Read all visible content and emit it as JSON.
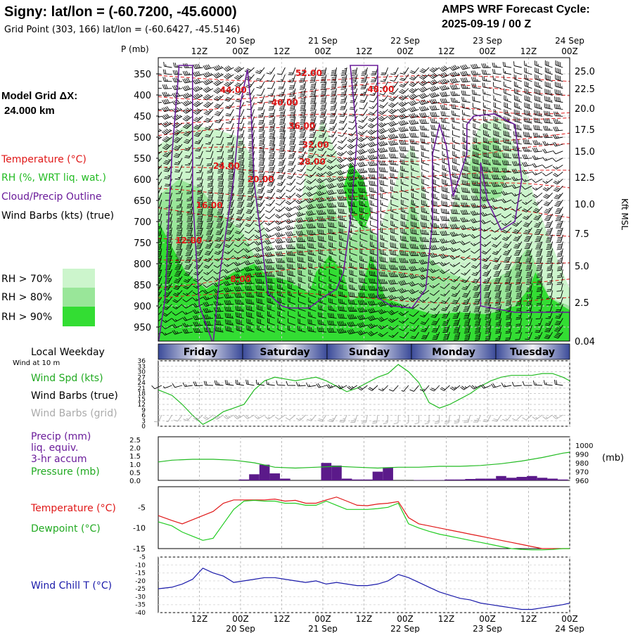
{
  "header": {
    "station_title": "Signy:  lat/lon = (-60.7200, -45.6000)",
    "grid_point": "Grid Point (303, 166) lat/lon = (-60.6427, -45.5146)",
    "forecast_label": "AMPS WRF Forecast Cycle:",
    "cycle": "2025-09-19 / 00  Z",
    "model_grid_label": "Model Grid ΔX:",
    "model_grid_value": "24.000 km"
  },
  "time_axis": {
    "hours": [
      "12Z",
      "00Z",
      "12Z",
      "00Z",
      "12Z",
      "00Z",
      "12Z",
      "00Z",
      "12Z",
      "00Z"
    ],
    "dates": [
      {
        "label": "20 Sep",
        "hour_index": 1
      },
      {
        "label": "21 Sep",
        "hour_index": 3
      },
      {
        "label": "22 Sep",
        "hour_index": 5
      },
      {
        "label": "23 Sep",
        "hour_index": 7
      },
      {
        "label": "24 Sep",
        "hour_index": 9
      }
    ],
    "span_hours": [
      -4,
      116
    ]
  },
  "weekday_bar": {
    "label": "Local Weekday",
    "days": [
      "Friday",
      "Saturday",
      "Sunday",
      "Monday",
      "Tuesday"
    ]
  },
  "chart_data": [
    {
      "type": "heatmap",
      "name": "cross-section",
      "p_label": "P (mb)",
      "pressure_levels": [
        350,
        400,
        450,
        500,
        550,
        600,
        650,
        700,
        750,
        800,
        850,
        900,
        950
      ],
      "height_label": "Kft MSL",
      "height_ticks": [
        "25.0",
        "22.5",
        "20.0",
        "17.5",
        "15.0",
        "12.5",
        "10.0",
        "7.5",
        "5.0",
        "2.5",
        "0.04"
      ],
      "legend": [
        {
          "label": "Temperature (°C)",
          "color": "#e01818"
        },
        {
          "label": "RH (%, WRT liq. wat.)",
          "color": "#22cc22"
        },
        {
          "label": "Cloud/Precip Outline",
          "color": "#6a1b9a"
        },
        {
          "label": "Wind Barbs (kts) (true)",
          "color": "#000000"
        }
      ],
      "rh_legend": [
        {
          "label": "RH > 70%",
          "color": "#ccf5cc"
        },
        {
          "label": "RH > 80%",
          "color": "#99e699"
        },
        {
          "label": "RH > 90%",
          "color": "#33dd33"
        }
      ],
      "temperature_contour_labels": [
        {
          "text": "52.00",
          "t": 36,
          "p": 355
        },
        {
          "text": "48.00",
          "t": 57,
          "p": 393
        },
        {
          "text": "44.00",
          "t": 14,
          "p": 395
        },
        {
          "text": "40.00",
          "t": 29,
          "p": 425
        },
        {
          "text": "36.00",
          "t": 34,
          "p": 480
        },
        {
          "text": "32.00",
          "t": 38,
          "p": 525
        },
        {
          "text": "28.00",
          "t": 37,
          "p": 565
        },
        {
          "text": "24.00",
          "t": 12,
          "p": 575
        },
        {
          "text": "20.00",
          "t": 22,
          "p": 607
        },
        {
          "text": "16.00",
          "t": 7,
          "p": 668
        },
        {
          "text": "12.00",
          "t": 1,
          "p": 752
        },
        {
          "text": "8.00",
          "t": 17,
          "p": 843
        }
      ]
    },
    {
      "type": "line",
      "name": "wind",
      "labels": [
        "Wind Spd (kts)",
        "Wind Barbs (true)",
        "Wind Barbs (grid)"
      ],
      "label_colors": [
        "#22aa22",
        "#000000",
        "#aaaaaa"
      ],
      "note": "Wind at 10 m",
      "y_ticks": [
        "36",
        "33",
        "30",
        "27",
        "24",
        "21",
        "18",
        "15",
        "12",
        "9",
        "6",
        "3",
        "0"
      ],
      "ylim": [
        0,
        36
      ],
      "x": [
        -4,
        0,
        3,
        6,
        9,
        12,
        15,
        18,
        21,
        24,
        27,
        30,
        33,
        36,
        39,
        42,
        45,
        48,
        51,
        54,
        57,
        60,
        63,
        66,
        69,
        72,
        75,
        78,
        81,
        84,
        87,
        90,
        93,
        96,
        99,
        102,
        105,
        108,
        111,
        114,
        116
      ],
      "values": [
        20,
        17,
        12,
        6,
        1,
        4,
        8,
        10,
        12,
        20,
        25,
        27,
        26,
        25,
        26,
        27,
        25,
        22,
        19,
        21,
        24,
        27,
        29,
        34,
        30,
        24,
        13,
        10,
        12,
        15,
        18,
        22,
        25,
        27,
        28,
        28,
        28,
        29,
        29,
        27,
        25
      ],
      "line_color": "#22bb22"
    },
    {
      "type": "bar",
      "name": "precip-pressure",
      "labels": [
        "Precip (mm)",
        "liq. equiv.",
        "3-hr accum",
        "Pressure (mb)"
      ],
      "label_colors": [
        "#6a1b9a",
        "#6a1b9a",
        "#6a1b9a",
        "#22aa22"
      ],
      "precip_y_ticks": [
        "2.5",
        "2.0",
        "1.5",
        "1.0",
        "0.5",
        "0.0"
      ],
      "pressure_y_ticks": [
        "1000",
        "990",
        "980",
        "970",
        "960"
      ],
      "pressure_unit": "(mb)",
      "precip_ylim": [
        0,
        2.5
      ],
      "pressure_ylim": [
        960,
        1000
      ],
      "precip_x": [
        21,
        24,
        27,
        30,
        33,
        45,
        48,
        51,
        54,
        57,
        60,
        63,
        72,
        75,
        78,
        81,
        84,
        87,
        90,
        93,
        96,
        99,
        102,
        105,
        108,
        111,
        114
      ],
      "precip_values": [
        0.05,
        0.35,
        0.9,
        0.4,
        0.1,
        1.0,
        0.85,
        0.1,
        0.05,
        0.05,
        0.5,
        0.75,
        0.02,
        0.02,
        0.02,
        0.05,
        0.05,
        0.08,
        0.1,
        0.1,
        0.25,
        0.15,
        0.2,
        0.25,
        0.15,
        0.1,
        0.05
      ],
      "precip_color": "#5b1a8a",
      "pressure_x": [
        -4,
        0,
        6,
        12,
        18,
        24,
        30,
        36,
        42,
        48,
        54,
        60,
        66,
        72,
        78,
        84,
        90,
        96,
        102,
        108,
        114,
        116
      ],
      "pressure_values": [
        981,
        983,
        984,
        984,
        983,
        980,
        975,
        974,
        975,
        976,
        975,
        974,
        975,
        975,
        976,
        976,
        977,
        979,
        982,
        986,
        991,
        992
      ],
      "pressure_color": "#22bb22"
    },
    {
      "type": "line",
      "name": "temperature-dewpoint",
      "labels": [
        "Temperature (°C)",
        "Dewpoint (°C)"
      ],
      "label_colors": [
        "#e01818",
        "#22aa22"
      ],
      "y_ticks": [
        "-5",
        "-10",
        "-15"
      ],
      "ylim": [
        -15,
        0
      ],
      "x": [
        -4,
        0,
        3,
        6,
        9,
        12,
        15,
        18,
        21,
        24,
        27,
        30,
        33,
        36,
        39,
        42,
        45,
        48,
        51,
        54,
        57,
        60,
        63,
        66,
        69,
        72,
        75,
        78,
        81,
        84,
        87,
        90,
        93,
        96,
        99,
        102,
        105,
        108,
        111,
        114,
        116
      ],
      "series": [
        {
          "name": "Temperature",
          "color": "#e01818",
          "values": [
            -7.0,
            -8.2,
            -9.0,
            -8.0,
            -7.0,
            -6.0,
            -4.0,
            -3.2,
            -3.2,
            -3.2,
            -3.2,
            -3.0,
            -3.5,
            -3.3,
            -4.0,
            -4.0,
            -3.2,
            -2.5,
            -3.5,
            -4.5,
            -4.6,
            -4.2,
            -4.0,
            -3.6,
            -7.5,
            -9.0,
            -9.5,
            -10.0,
            -10.5,
            -11.0,
            -11.5,
            -12.0,
            -12.5,
            -13.0,
            -13.5,
            -14.0,
            -14.5,
            -15.0,
            -15.0,
            -15.0,
            -15.0
          ]
        },
        {
          "name": "Dewpoint",
          "color": "#22cc22",
          "values": [
            -8.5,
            -9.5,
            -11.0,
            -12.0,
            -13.0,
            -12.5,
            -9.0,
            -5.5,
            -3.5,
            -3.3,
            -3.5,
            -3.5,
            -4.0,
            -4.0,
            -4.5,
            -4.5,
            -3.5,
            -4.5,
            -5.5,
            -5.5,
            -5.5,
            -5.3,
            -5.0,
            -4.0,
            -9.0,
            -10.0,
            -10.8,
            -11.5,
            -12.0,
            -12.5,
            -13.0,
            -13.5,
            -14.0,
            -14.5,
            -15.0,
            -15.2,
            -15.3,
            -15.3,
            -15.2,
            -15.0,
            -15.0
          ]
        }
      ]
    },
    {
      "type": "line",
      "name": "wind-chill",
      "labels": [
        "Wind Chill T (°C)"
      ],
      "label_colors": [
        "#1a1aaa"
      ],
      "y_ticks": [
        "-5",
        "-10",
        "-15",
        "-20",
        "-25",
        "-30",
        "-35",
        "-40"
      ],
      "ylim": [
        -40,
        -5
      ],
      "x": [
        -4,
        0,
        3,
        6,
        9,
        12,
        15,
        18,
        21,
        24,
        27,
        30,
        33,
        36,
        39,
        42,
        45,
        48,
        51,
        54,
        57,
        60,
        63,
        66,
        69,
        72,
        75,
        78,
        81,
        84,
        87,
        90,
        93,
        96,
        99,
        102,
        105,
        108,
        111,
        114,
        116
      ],
      "values": [
        -25,
        -24,
        -22,
        -19,
        -12,
        -15,
        -17,
        -21,
        -20,
        -19,
        -18,
        -18,
        -19,
        -20,
        -21,
        -20,
        -22,
        -21,
        -22,
        -23,
        -23,
        -22,
        -20,
        -16,
        -18,
        -21,
        -24,
        -27,
        -29,
        -31,
        -32,
        -34,
        -35,
        -36,
        -37,
        -38,
        -38,
        -37,
        -36,
        -35,
        -34
      ],
      "line_color": "#1a1aaa"
    }
  ]
}
